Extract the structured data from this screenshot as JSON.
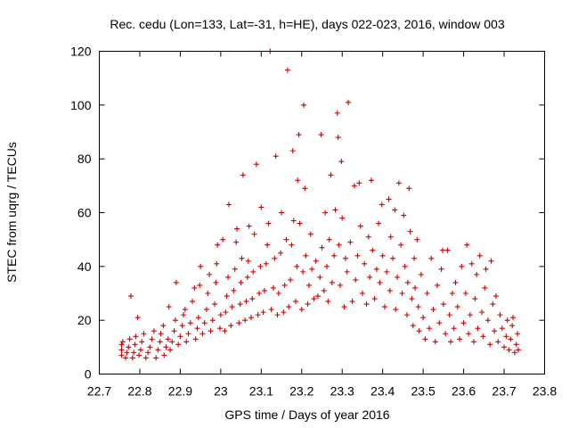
{
  "chart_data": {
    "type": "scatter",
    "title": "Rec. cedu (Lon=133, Lat=-31, h=HE), days 022-023, 2016, window 003",
    "xlabel": "GPS time / Days of year 2016",
    "ylabel": "STEC from uqrg / TECUs",
    "xlim": [
      22.7,
      23.8
    ],
    "ylim": [
      0,
      120
    ],
    "xticks": [
      "22.7",
      "22.8",
      "22.9",
      "23",
      "23.1",
      "23.2",
      "23.3",
      "23.4",
      "23.5",
      "23.6",
      "23.7",
      "23.8"
    ],
    "yticks": [
      "0",
      "20",
      "40",
      "60",
      "80",
      "100",
      "120"
    ],
    "xtick_values": [
      22.7,
      22.8,
      22.9,
      23.0,
      23.1,
      23.2,
      23.3,
      23.4,
      23.5,
      23.6,
      23.7,
      23.8
    ],
    "ytick_values": [
      0,
      20,
      40,
      60,
      80,
      100,
      120
    ],
    "marker": "plus",
    "series": [
      {
        "name": "STEC",
        "color": "#cc0000",
        "points": [
          [
            22.755,
            7
          ],
          [
            22.755,
            9
          ],
          [
            22.755,
            11
          ],
          [
            22.758,
            12
          ],
          [
            22.765,
            6
          ],
          [
            22.768,
            8
          ],
          [
            22.772,
            10
          ],
          [
            22.775,
            13
          ],
          [
            22.778,
            29
          ],
          [
            22.782,
            6
          ],
          [
            22.785,
            8
          ],
          [
            22.788,
            11
          ],
          [
            22.79,
            14
          ],
          [
            22.795,
            21
          ],
          [
            22.798,
            7
          ],
          [
            22.802,
            9
          ],
          [
            22.805,
            12
          ],
          [
            22.81,
            15
          ],
          [
            22.815,
            6
          ],
          [
            22.82,
            8
          ],
          [
            22.825,
            10
          ],
          [
            22.83,
            13
          ],
          [
            22.835,
            16
          ],
          [
            22.84,
            6
          ],
          [
            22.845,
            9
          ],
          [
            22.85,
            12
          ],
          [
            22.852,
            15
          ],
          [
            22.858,
            18
          ],
          [
            22.86,
            7
          ],
          [
            22.865,
            10
          ],
          [
            22.87,
            13
          ],
          [
            22.872,
            25
          ],
          [
            22.875,
            9
          ],
          [
            22.88,
            12
          ],
          [
            22.885,
            16
          ],
          [
            22.888,
            20
          ],
          [
            22.89,
            34
          ],
          [
            22.895,
            11
          ],
          [
            22.9,
            14
          ],
          [
            22.905,
            18
          ],
          [
            22.908,
            22
          ],
          [
            22.912,
            24
          ],
          [
            22.915,
            12
          ],
          [
            22.92,
            15
          ],
          [
            22.925,
            19
          ],
          [
            22.93,
            27
          ],
          [
            22.935,
            32
          ],
          [
            22.938,
            13
          ],
          [
            22.942,
            17
          ],
          [
            22.945,
            21
          ],
          [
            22.948,
            33
          ],
          [
            22.95,
            40
          ],
          [
            22.955,
            15
          ],
          [
            22.96,
            19
          ],
          [
            22.965,
            24
          ],
          [
            22.968,
            30
          ],
          [
            22.972,
            37
          ],
          [
            22.975,
            16
          ],
          [
            22.98,
            20
          ],
          [
            22.985,
            26
          ],
          [
            22.988,
            34
          ],
          [
            22.99,
            41
          ],
          [
            22.992,
            48
          ],
          [
            22.998,
            17
          ],
          [
            23.0,
            22
          ],
          [
            23.005,
            50
          ],
          [
            23.01,
            16
          ],
          [
            23.012,
            23
          ],
          [
            23.015,
            29
          ],
          [
            23.018,
            36
          ],
          [
            23.02,
            63
          ],
          [
            23.025,
            18
          ],
          [
            23.028,
            25
          ],
          [
            23.032,
            31
          ],
          [
            23.035,
            39
          ],
          [
            23.038,
            49
          ],
          [
            23.04,
            54
          ],
          [
            23.045,
            19
          ],
          [
            23.048,
            26
          ],
          [
            23.05,
            34
          ],
          [
            23.052,
            43
          ],
          [
            23.055,
            74
          ],
          [
            23.06,
            20
          ],
          [
            23.063,
            27
          ],
          [
            23.066,
            36
          ],
          [
            23.068,
            42
          ],
          [
            23.07,
            55
          ],
          [
            23.075,
            21
          ],
          [
            23.078,
            28
          ],
          [
            23.08,
            38
          ],
          [
            23.083,
            52
          ],
          [
            23.088,
            78
          ],
          [
            23.092,
            22
          ],
          [
            23.095,
            30
          ],
          [
            23.098,
            40
          ],
          [
            23.1,
            62
          ],
          [
            23.105,
            23
          ],
          [
            23.108,
            31
          ],
          [
            23.112,
            41
          ],
          [
            23.115,
            48
          ],
          [
            23.118,
            56
          ],
          [
            23.122,
            120
          ],
          [
            23.125,
            24
          ],
          [
            23.13,
            32
          ],
          [
            23.133,
            43
          ],
          [
            23.136,
            81
          ],
          [
            23.14,
            22
          ],
          [
            23.143,
            30
          ],
          [
            23.148,
            45
          ],
          [
            23.15,
            60
          ],
          [
            23.155,
            23
          ],
          [
            23.158,
            33
          ],
          [
            23.162,
            50
          ],
          [
            23.165,
            113
          ],
          [
            23.168,
            25
          ],
          [
            23.172,
            35
          ],
          [
            23.175,
            48
          ],
          [
            23.178,
            83
          ],
          [
            23.18,
            57
          ],
          [
            23.185,
            27
          ],
          [
            23.188,
            40
          ],
          [
            23.19,
            72
          ],
          [
            23.193,
            89
          ],
          [
            23.195,
            56
          ],
          [
            23.2,
            24
          ],
          [
            23.203,
            38
          ],
          [
            23.205,
            100
          ],
          [
            23.208,
            69
          ],
          [
            23.21,
            44
          ],
          [
            23.215,
            26
          ],
          [
            23.218,
            33
          ],
          [
            23.222,
            52
          ],
          [
            23.225,
            39
          ],
          [
            23.23,
            28
          ],
          [
            23.235,
            42
          ],
          [
            23.24,
            29
          ],
          [
            23.245,
            36
          ],
          [
            23.248,
            89
          ],
          [
            23.25,
            47
          ],
          [
            23.255,
            31
          ],
          [
            23.258,
            60
          ],
          [
            23.262,
            40
          ],
          [
            23.265,
            27
          ],
          [
            23.268,
            50
          ],
          [
            23.272,
            74
          ],
          [
            23.275,
            34
          ],
          [
            23.28,
            44
          ],
          [
            23.283,
            61
          ],
          [
            23.288,
            97
          ],
          [
            23.29,
            88
          ],
          [
            23.292,
            48
          ],
          [
            23.295,
            33
          ],
          [
            23.298,
            79
          ],
          [
            23.3,
            58
          ],
          [
            23.305,
            25
          ],
          [
            23.308,
            43
          ],
          [
            23.312,
            38
          ],
          [
            23.315,
            101
          ],
          [
            23.32,
            49
          ],
          [
            23.325,
            27
          ],
          [
            23.33,
            70
          ],
          [
            23.333,
            35
          ],
          [
            23.338,
            44
          ],
          [
            23.342,
            71
          ],
          [
            23.345,
            55
          ],
          [
            23.35,
            30
          ],
          [
            23.355,
            41
          ],
          [
            23.36,
            26
          ],
          [
            23.365,
            51
          ],
          [
            23.368,
            36
          ],
          [
            23.372,
            72
          ],
          [
            23.375,
            46
          ],
          [
            23.38,
            28
          ],
          [
            23.385,
            39
          ],
          [
            23.39,
            56
          ],
          [
            23.393,
            34
          ],
          [
            23.398,
            63
          ],
          [
            23.4,
            44
          ],
          [
            23.405,
            25
          ],
          [
            23.41,
            38
          ],
          [
            23.415,
            65
          ],
          [
            23.418,
            31
          ],
          [
            23.42,
            51
          ],
          [
            23.425,
            43
          ],
          [
            23.43,
            61
          ],
          [
            23.432,
            24
          ],
          [
            23.436,
            36
          ],
          [
            23.44,
            71
          ],
          [
            23.445,
            48
          ],
          [
            23.448,
            30
          ],
          [
            23.452,
            59
          ],
          [
            23.455,
            40
          ],
          [
            23.46,
            22
          ],
          [
            23.462,
            34
          ],
          [
            23.465,
            69
          ],
          [
            23.468,
            53
          ],
          [
            23.472,
            28
          ],
          [
            23.475,
            18
          ],
          [
            23.478,
            43
          ],
          [
            23.48,
            32
          ],
          [
            23.485,
            50
          ],
          [
            23.488,
            25
          ],
          [
            23.49,
            16
          ],
          [
            23.495,
            37
          ],
          [
            23.5,
            21
          ],
          [
            23.505,
            13
          ],
          [
            23.51,
            30
          ],
          [
            23.515,
            17
          ],
          [
            23.52,
            43
          ],
          [
            23.525,
            24
          ],
          [
            23.53,
            12
          ],
          [
            23.535,
            33
          ],
          [
            23.54,
            19
          ],
          [
            23.545,
            39
          ],
          [
            23.548,
            46
          ],
          [
            23.55,
            26
          ],
          [
            23.555,
            15
          ],
          [
            23.56,
            46
          ],
          [
            23.565,
            22
          ],
          [
            23.568,
            12
          ],
          [
            23.572,
            30
          ],
          [
            23.576,
            17
          ],
          [
            23.58,
            34
          ],
          [
            23.585,
            25
          ],
          [
            23.59,
            13
          ],
          [
            23.595,
            40
          ],
          [
            23.6,
            19
          ],
          [
            23.605,
            30
          ],
          [
            23.608,
            48
          ],
          [
            23.612,
            15
          ],
          [
            23.616,
            22
          ],
          [
            23.62,
            41
          ],
          [
            23.625,
            12
          ],
          [
            23.628,
            28
          ],
          [
            23.632,
            37
          ],
          [
            23.635,
            17
          ],
          [
            23.64,
            44
          ],
          [
            23.645,
            23
          ],
          [
            23.648,
            14
          ],
          [
            23.652,
            32
          ],
          [
            23.655,
            39
          ],
          [
            23.66,
            20
          ],
          [
            23.665,
            11
          ],
          [
            23.668,
            42
          ],
          [
            23.672,
            26
          ],
          [
            23.676,
            16
          ],
          [
            23.68,
            29
          ],
          [
            23.685,
            12
          ],
          [
            23.69,
            22
          ],
          [
            23.695,
            17
          ],
          [
            23.7,
            10
          ],
          [
            23.705,
            14
          ],
          [
            23.708,
            20
          ],
          [
            23.712,
            9
          ],
          [
            23.716,
            13
          ],
          [
            23.72,
            18
          ],
          [
            23.722,
            21
          ],
          [
            23.726,
            8
          ],
          [
            23.73,
            11
          ],
          [
            23.733,
            15
          ],
          [
            23.735,
            9
          ]
        ]
      }
    ]
  }
}
